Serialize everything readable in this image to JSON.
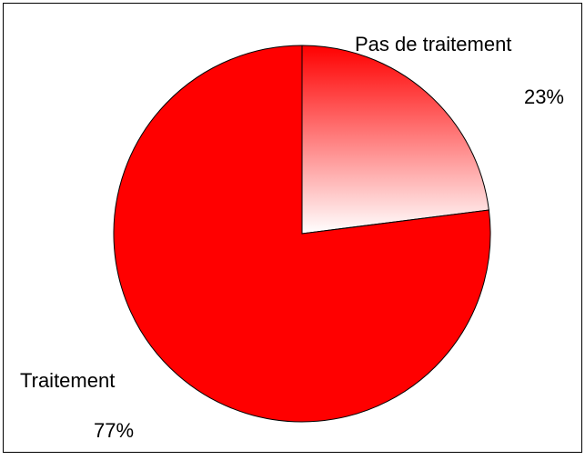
{
  "chart_data": {
    "type": "pie",
    "categories": [
      "Pas de traitement",
      "Traitement"
    ],
    "values": [
      23,
      77
    ],
    "value_labels": [
      "23%",
      "77%"
    ],
    "colors": [
      "#ff0000",
      "#ff0000"
    ]
  }
}
